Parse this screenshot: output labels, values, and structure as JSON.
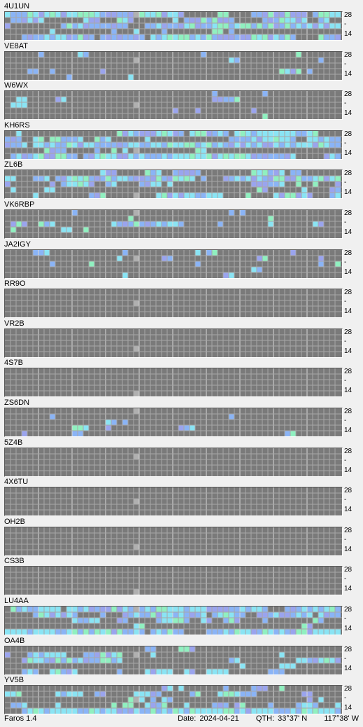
{
  "app": {
    "title": "Faros 1.4"
  },
  "status": {
    "date_label": "Date:",
    "date": "2024-04-21",
    "qth_label": "QTH:",
    "lat": "33°37' N",
    "lon": "117°38' W"
  },
  "scale": {
    "top": "28",
    "mid": "-",
    "bottom": "14"
  },
  "colors": {
    "none": "#7a7a7a",
    "grid_line": "#a8a8a8",
    "marker": "#b0b0b0",
    "weak": "#9aa4ee",
    "fair": "#8ab4f6",
    "good": "#8ae4f4",
    "strong": "#90f0c0"
  },
  "beacons": [
    {
      "name": "4U1UN",
      "activity": [
        0.55,
        0.35,
        0.55,
        0.25,
        0.45
      ]
    },
    {
      "name": "VE8AT",
      "activity": [
        0.1,
        0.05,
        0.0,
        0.05,
        0.05
      ]
    },
    {
      "name": "W6WX",
      "activity": [
        0.05,
        0.1,
        0.05,
        0.05,
        0.05
      ]
    },
    {
      "name": "KH6RS",
      "activity": [
        0.4,
        0.35,
        0.45,
        0.15,
        0.55
      ]
    },
    {
      "name": "ZL6B",
      "activity": [
        0.3,
        0.45,
        0.25,
        0.15,
        0.3
      ]
    },
    {
      "name": "VK6RBP",
      "activity": [
        0.1,
        0.05,
        0.35,
        0.05,
        0.0
      ]
    },
    {
      "name": "JA2IGY",
      "activity": [
        0.15,
        0.1,
        0.1,
        0.05,
        0.05
      ]
    },
    {
      "name": "RR9O",
      "activity": [
        0.0,
        0.0,
        0.0,
        0.0,
        0.0
      ]
    },
    {
      "name": "VR2B",
      "activity": [
        0.0,
        0.0,
        0.0,
        0.0,
        0.0
      ]
    },
    {
      "name": "4S7B",
      "activity": [
        0.0,
        0.0,
        0.0,
        0.0,
        0.0
      ]
    },
    {
      "name": "ZS6DN",
      "activity": [
        0.05,
        0.02,
        0.05,
        0.1,
        0.05
      ]
    },
    {
      "name": "5Z4B",
      "activity": [
        0.0,
        0.0,
        0.0,
        0.0,
        0.0
      ]
    },
    {
      "name": "4X6TU",
      "activity": [
        0.0,
        0.0,
        0.0,
        0.02,
        0.0
      ]
    },
    {
      "name": "OH2B",
      "activity": [
        0.0,
        0.0,
        0.0,
        0.0,
        0.0
      ]
    },
    {
      "name": "CS3B",
      "activity": [
        0.0,
        0.0,
        0.0,
        0.0,
        0.0
      ]
    },
    {
      "name": "LU4AA",
      "activity": [
        0.45,
        0.4,
        0.3,
        0.1,
        0.45
      ]
    },
    {
      "name": "OA4B",
      "activity": [
        0.1,
        0.35,
        0.35,
        0.15,
        0.3
      ]
    },
    {
      "name": "YV5B",
      "activity": [
        0.15,
        0.35,
        0.2,
        0.25,
        0.55
      ]
    }
  ]
}
